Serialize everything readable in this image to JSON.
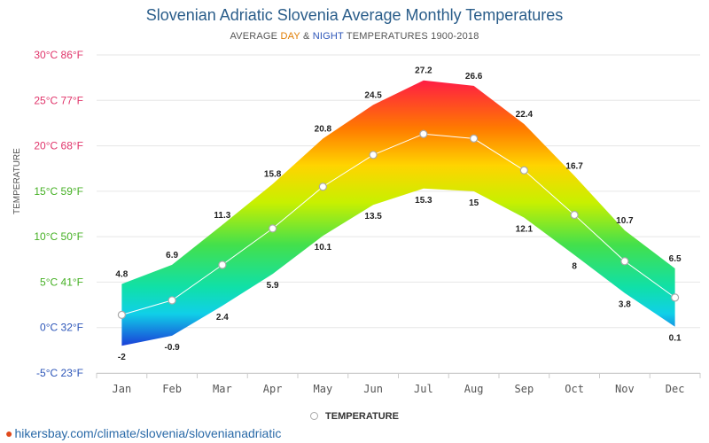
{
  "title": "Slovenian Adriatic Slovenia Average Monthly Temperatures",
  "subtitle": {
    "prefix": "AVERAGE ",
    "day": "DAY",
    "amp": " & ",
    "night": "NIGHT",
    "suffix": " TEMPERATURES 1900-2018"
  },
  "source": "hikersbay.com/climate/slovenia/slovenianadriatic",
  "colors": {
    "day": "#e07b00",
    "night": "#2c55b8",
    "title": "#2a5d8a",
    "source": "#2a6aa8"
  },
  "chart_data": {
    "type": "area",
    "title": "Slovenian Adriatic Slovenia Average Monthly Temperatures",
    "ylabel": "TEMPERATURE",
    "ylim": [
      -5,
      30
    ],
    "grid": true,
    "legend_position": "bottom-center",
    "y_ticks": [
      {
        "value": 30,
        "label": "30°C 86°F",
        "color": "#e0356b"
      },
      {
        "value": 25,
        "label": "25°C 77°F",
        "color": "#e0356b"
      },
      {
        "value": 20,
        "label": "20°C 68°F",
        "color": "#e0356b"
      },
      {
        "value": 15,
        "label": "15°C 59°F",
        "color": "#45b024"
      },
      {
        "value": 10,
        "label": "10°C 50°F",
        "color": "#45b024"
      },
      {
        "value": 5,
        "label": "5°C 41°F",
        "color": "#45b024"
      },
      {
        "value": 0,
        "label": "0°C 32°F",
        "color": "#2c55b8"
      },
      {
        "value": -5,
        "label": "-5°C 23°F",
        "color": "#2c55b8"
      }
    ],
    "categories": [
      "Jan",
      "Feb",
      "Mar",
      "Apr",
      "May",
      "Jun",
      "Jul",
      "Aug",
      "Sep",
      "Oct",
      "Nov",
      "Dec"
    ],
    "day": [
      4.8,
      6.9,
      11.3,
      15.8,
      20.8,
      24.5,
      27.2,
      26.6,
      22.4,
      16.7,
      10.7,
      6.5
    ],
    "night": [
      -2,
      -0.9,
      2.4,
      5.9,
      10.1,
      13.5,
      15.3,
      15,
      12.1,
      8,
      3.8,
      0.1
    ],
    "series": [
      {
        "name": "TEMPERATURE",
        "values": [
          1.4,
          3.0,
          6.9,
          10.9,
          15.5,
          19.0,
          21.3,
          20.8,
          17.3,
          12.4,
          7.3,
          3.3
        ]
      }
    ]
  }
}
